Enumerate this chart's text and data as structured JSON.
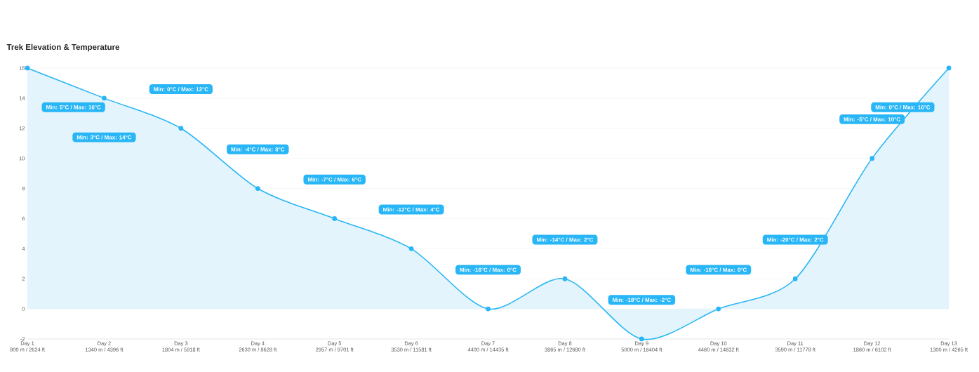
{
  "chart_data": {
    "type": "area",
    "title": "Trek Elevation & Temperature",
    "categories": [
      "Day 1\n800 m / 2624 ft",
      "Day 2\n1340 m / 4396 ft",
      "Day 3\n1804 m / 5918 ft",
      "Day 4\n2630 m / 8628 ft",
      "Day 5\n2957 m / 9701 ft",
      "Day 6\n3530 m / 11581 ft",
      "Day 7\n4400 m / 14435 ft",
      "Day 8\n3865 m / 12680 ft",
      "Day 9\n5000 m / 16404 ft",
      "Day 10\n4460 m / 14632 ft",
      "Day 11\n3590 m / 11778 ft",
      "Day 12\n1860 m / 6102 ft",
      "Day 13\n1300 m / 4265 ft"
    ],
    "values": [
      16,
      14,
      12,
      8,
      6,
      4,
      0,
      2,
      -2,
      0,
      2,
      10,
      16
    ],
    "color": "#29b6f6",
    "ylim": [
      -2,
      16
    ],
    "yticks": [
      -2,
      0,
      2,
      4,
      6,
      8,
      10,
      12,
      14,
      16
    ],
    "grid": "y",
    "marker": "circle",
    "annotations": [
      "Min: 5°C / Max: 16°C",
      "Min: 3°C / Max: 14°C",
      "Min: 0°C / Max: 12°C",
      "Min: -4°C / Max: 8°C",
      "Min: -7°C / Max: 6°C",
      "Min: -12°C / Max: 4°C",
      "Min: -16°C / Max: 0°C",
      "Min: -14°C / Max: 2°C",
      "Min: -18°C / Max: -2°C",
      "Min: -16°C / Max: 0°C",
      "Min: -20°C / Max: 2°C",
      "Min: -5°C / Max: 10°C",
      "Min: 0°C / Max: 16°C"
    ]
  }
}
